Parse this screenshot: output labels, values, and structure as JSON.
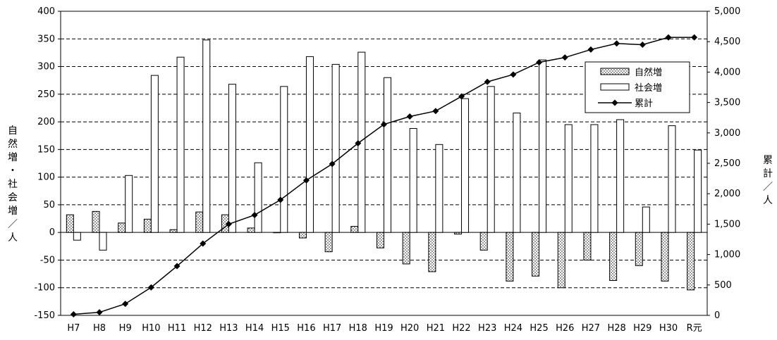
{
  "chart_data": {
    "type": "bar",
    "categories": [
      "H7",
      "H8",
      "H9",
      "H10",
      "H11",
      "H12",
      "H13",
      "H14",
      "H15",
      "H16",
      "H17",
      "H18",
      "H19",
      "H20",
      "H21",
      "H22",
      "H23",
      "H24",
      "H25",
      "H26",
      "H27",
      "H28",
      "H29",
      "H30",
      "R元"
    ],
    "series": [
      {
        "name": "自然増",
        "type": "bar",
        "axis": "left",
        "values": [
          32,
          38,
          17,
          24,
          5,
          37,
          32,
          8,
          0,
          -10,
          -35,
          11,
          -28,
          -57,
          -71,
          -3,
          -32,
          -88,
          -79,
          -100,
          -50,
          -87,
          -60,
          -88,
          -104
        ]
      },
      {
        "name": "社会増",
        "type": "bar",
        "axis": "left",
        "values": [
          -14,
          -32,
          103,
          284,
          317,
          348,
          268,
          126,
          264,
          318,
          304,
          326,
          280,
          188,
          159,
          242,
          264,
          216,
          312,
          195,
          195,
          204,
          46,
          193,
          149
        ]
      },
      {
        "name": "累計",
        "type": "line",
        "axis": "right",
        "values": [
          18,
          50,
          190,
          460,
          810,
          1180,
          1500,
          1650,
          1900,
          2220,
          2490,
          2830,
          3140,
          3270,
          3360,
          3600,
          3840,
          3960,
          4160,
          4240,
          4370,
          4470,
          4450,
          4570,
          4570
        ]
      }
    ],
    "y_left": {
      "label": "自然増・社会増／人",
      "min": -150,
      "max": 400,
      "step": 50,
      "ticks": [
        "400",
        "350",
        "300",
        "250",
        "200",
        "150",
        "100",
        "50",
        "0",
        "-50",
        "-100",
        "-150"
      ]
    },
    "y_right": {
      "label": "累計／人",
      "min": 0,
      "max": 5000,
      "step": 500,
      "ticks": [
        "5,000",
        "4,500",
        "4,000",
        "3,500",
        "3,000",
        "2,500",
        "2,000",
        "1,500",
        "1,000",
        "500",
        "0"
      ]
    },
    "grid": "dashed horizontal",
    "legend": {
      "position": "upper-right inside",
      "entries": [
        "自然増",
        "社会増",
        "累計"
      ]
    },
    "colors": {
      "natural_fill": "#d9d9d9",
      "social_fill": "#ffffff",
      "line": "#000000"
    }
  }
}
